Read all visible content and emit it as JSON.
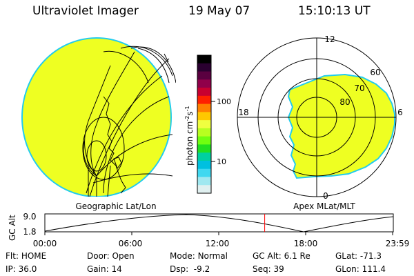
{
  "header": {
    "instrument": "Ultraviolet Imager",
    "date": "19 May 07",
    "time": "15:10:13 UT"
  },
  "colorbar": {
    "unit": "photon cm",
    "unit_exp1": "-2",
    "unit_mid": "s",
    "unit_exp2": "-1",
    "ticks": [
      {
        "label": "100",
        "value": 100
      },
      {
        "label": "10",
        "value": 10
      }
    ],
    "colors": [
      "#000000",
      "#2a0030",
      "#5a0040",
      "#90004a",
      "#c80030",
      "#ff2000",
      "#ff8000",
      "#ffc800",
      "#f0ff40",
      "#b8ff20",
      "#70ff10",
      "#20e020",
      "#00d0a0",
      "#00c0e0",
      "#40d8f0",
      "#a0e8f0",
      "#e0f0f0"
    ]
  },
  "left_panel": {
    "label": "Geographic Lat/Lon",
    "disk_color": "#eeff22",
    "limb_color": "#22ccee"
  },
  "right_panel": {
    "label": "Apex MLat/MLT",
    "lat_labels": [
      "60",
      "70",
      "80"
    ],
    "mlt_labels": {
      "top": "12",
      "right": "6",
      "bottom": "0",
      "left": "18"
    }
  },
  "alt_plot": {
    "ylabel": "GC Alt",
    "y_max": "9.0",
    "y_min": "1.8",
    "x_ticks": [
      "00:00",
      "06:00",
      "12:00",
      "18:00",
      "23:59"
    ],
    "marker_color": "#ff0000",
    "marker_time_hours": 15.17
  },
  "status": {
    "flt_label": "Flt:",
    "flt": "HOME",
    "ip_label": "IP:",
    "ip": "36.0",
    "door_label": "Door:",
    "door": "Open",
    "gain_label": "Gain:",
    "gain": "14",
    "mode_label": "Mode:",
    "mode": "Normal",
    "dsp_label": "Dsp:",
    "dsp": "-9.2",
    "gcalt_label": "GC Alt:",
    "gcalt": "6.1 Re",
    "seq_label": "Seq:",
    "seq": "39",
    "glat_label": "GLat:",
    "glat": "-71.3",
    "glon_label": "GLon:",
    "glon": "111.4"
  }
}
